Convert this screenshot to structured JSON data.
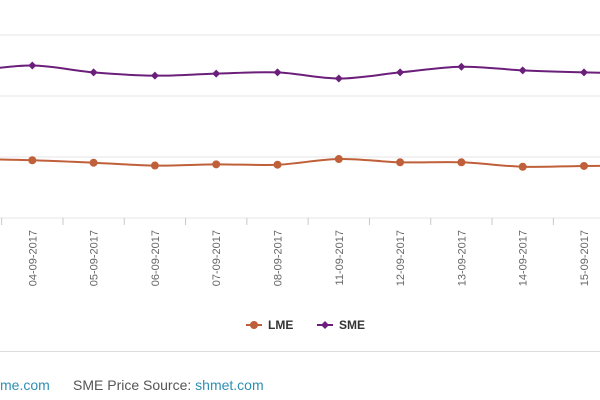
{
  "chart_data": {
    "type": "line",
    "categories": [
      "",
      "04-09-2017",
      "05-09-2017",
      "06-09-2017",
      "07-09-2017",
      "08-09-2017",
      "11-09-2017",
      "12-09-2017",
      "13-09-2017",
      "14-09-2017",
      "15-09-2017",
      ""
    ],
    "series": [
      {
        "name": "LME",
        "color": "#c0603a",
        "values": [
          2.45,
          2.42,
          2.36,
          2.29,
          2.32,
          2.31,
          2.45,
          2.37,
          2.37,
          2.26,
          2.28,
          2.28
        ]
      },
      {
        "name": "SME",
        "color": "#6b1f7a",
        "values": [
          4.61,
          4.75,
          4.58,
          4.5,
          4.55,
          4.58,
          4.43,
          4.58,
          4.72,
          4.63,
          4.58,
          4.55
        ]
      }
    ],
    "ylim": [
      1.0,
      5.5
    ],
    "grid": true,
    "legend": "bottom-center"
  },
  "footer": {
    "left_link": "me.com",
    "source_label": "SME Price Source: ",
    "source_link": "shmet.com"
  }
}
